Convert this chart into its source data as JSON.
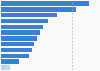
{
  "values": [
    90,
    77,
    57,
    48,
    43,
    40,
    37,
    34,
    32,
    29,
    18,
    9
  ],
  "bar_colors": [
    "#3a7fd4",
    "#3a7fd4",
    "#3a7fd4",
    "#3a7fd4",
    "#3a7fd4",
    "#3a7fd4",
    "#3a7fd4",
    "#3a7fd4",
    "#3a7fd4",
    "#3a7fd4",
    "#3a7fd4",
    "#b8d4f0"
  ],
  "background_color": "#f9f9f9",
  "dashed_line_x": 72,
  "bar_height": 0.78,
  "xlim": [
    0,
    100
  ]
}
